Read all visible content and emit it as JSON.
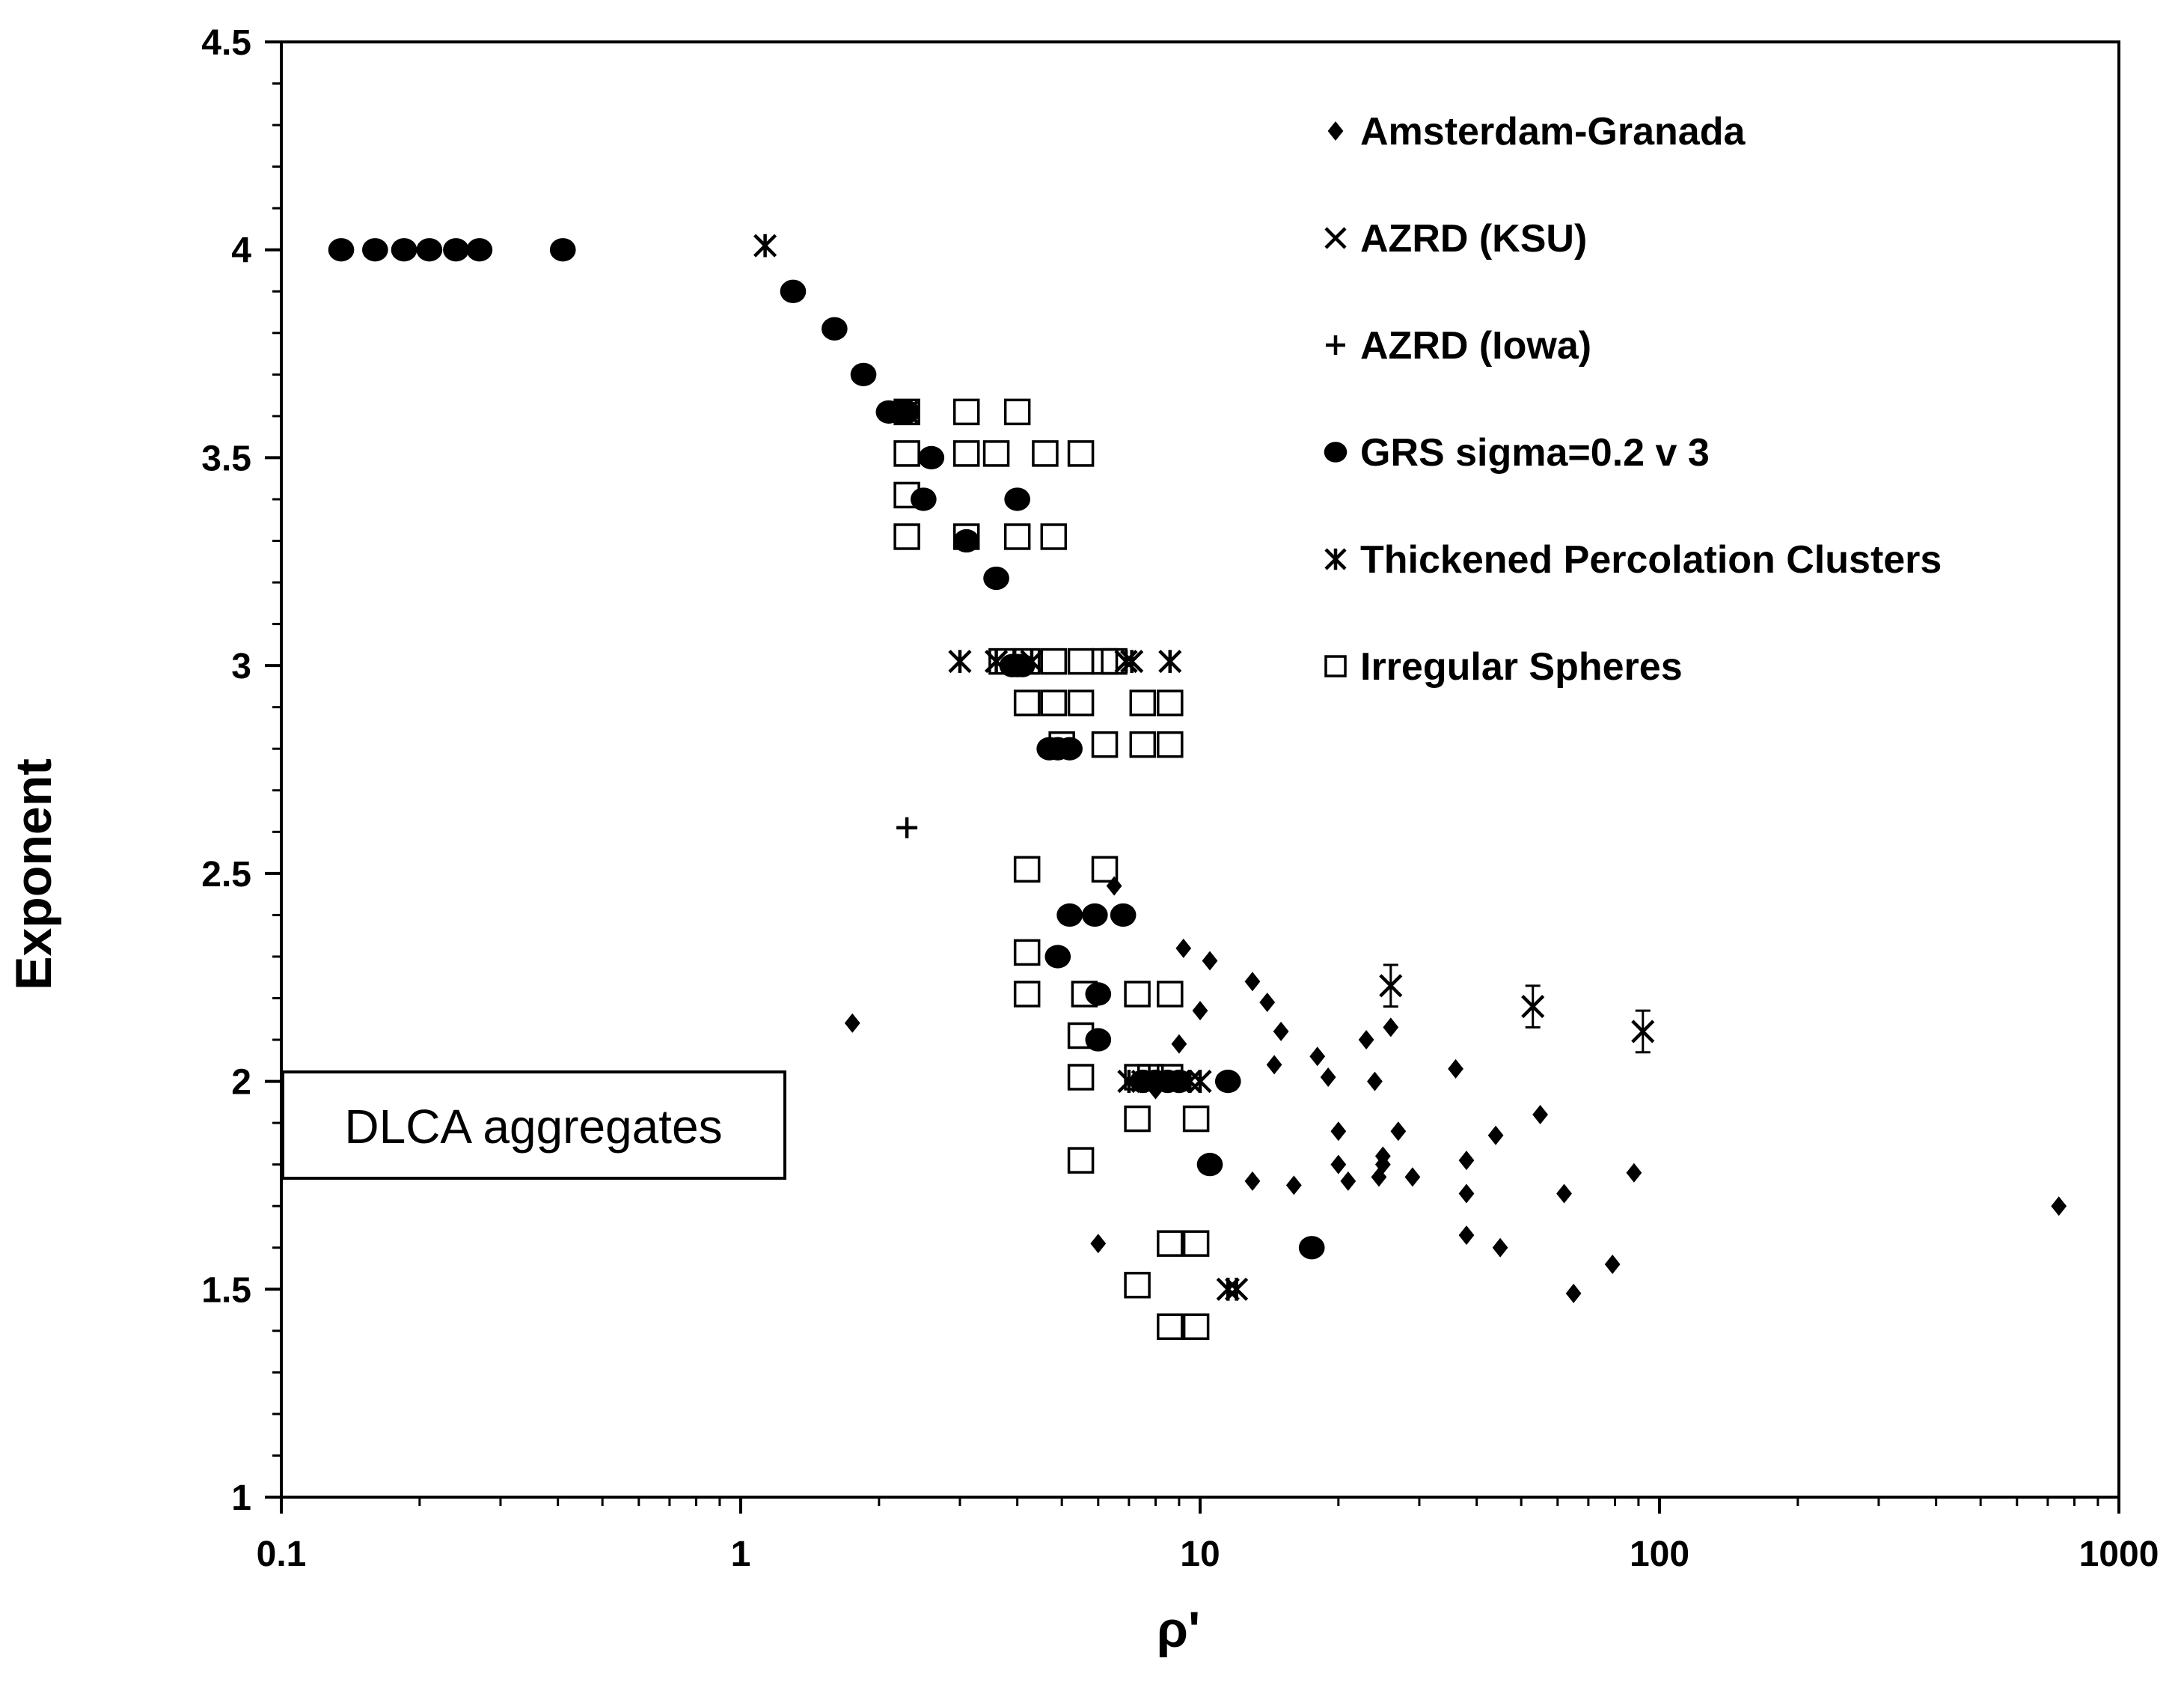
{
  "chart_data": {
    "type": "scatter",
    "title": "",
    "xlabel": "ρ'",
    "ylabel": "Exponent",
    "xscale": "log",
    "xlim": [
      0.1,
      1000
    ],
    "ylim": [
      1,
      4.5
    ],
    "xticks": [
      0.1,
      1,
      10,
      100,
      1000
    ],
    "xtick_labels": [
      "0.1",
      "1",
      "10",
      "100",
      "1000"
    ],
    "yticks": [
      1,
      1.5,
      2,
      2.5,
      3,
      3.5,
      4,
      4.5
    ],
    "ytick_labels": [
      "1",
      "1.5",
      "2",
      "2.5",
      "3",
      "3.5",
      "4",
      "4.5"
    ],
    "grid": false,
    "legend_position": "top-right",
    "annotation": "DLCA aggregates",
    "series": [
      {
        "name": "Amsterdam-Granada",
        "marker": "diamond",
        "points": [
          [
            1.75,
            2.14
          ],
          [
            6.0,
            1.61
          ],
          [
            6.5,
            2.47
          ],
          [
            8.0,
            1.98
          ],
          [
            9.0,
            2.09
          ],
          [
            9.2,
            2.32
          ],
          [
            10.0,
            2.17
          ],
          [
            10.5,
            2.29
          ],
          [
            13.0,
            2.24
          ],
          [
            13.0,
            1.76
          ],
          [
            14.0,
            2.19
          ],
          [
            15.0,
            2.12
          ],
          [
            14.5,
            2.04
          ],
          [
            16.0,
            1.75
          ],
          [
            18.0,
            2.06
          ],
          [
            19.0,
            2.01
          ],
          [
            20.0,
            1.88
          ],
          [
            20.0,
            1.8
          ],
          [
            21.0,
            1.76
          ],
          [
            23.0,
            2.1
          ],
          [
            24.0,
            2.0
          ],
          [
            24.5,
            1.77
          ],
          [
            25.0,
            1.8
          ],
          [
            25.0,
            1.82
          ],
          [
            26.0,
            2.13
          ],
          [
            27.0,
            1.88
          ],
          [
            29.0,
            1.77
          ],
          [
            36.0,
            2.03
          ],
          [
            38.0,
            1.81
          ],
          [
            38.0,
            1.73
          ],
          [
            38.0,
            1.63
          ],
          [
            44.0,
            1.87
          ],
          [
            45.0,
            1.6
          ],
          [
            55.0,
            1.92
          ],
          [
            62.0,
            1.73
          ],
          [
            65.0,
            1.49
          ],
          [
            79.0,
            1.56
          ],
          [
            88.0,
            1.78
          ],
          [
            740.0,
            1.7
          ]
        ]
      },
      {
        "name": "AZRD (KSU)",
        "marker": "x",
        "points": [
          [
            26.0,
            2.23
          ],
          [
            53.0,
            2.18
          ],
          [
            92.0,
            2.12
          ]
        ],
        "error": [
          0.05,
          0.05,
          0.05
        ]
      },
      {
        "name": "AZRD (Iowa)",
        "marker": "plus",
        "points": [
          [
            2.3,
            2.61
          ]
        ]
      },
      {
        "name": "GRS sigma=0.2 v 3",
        "marker": "circle",
        "points": [
          [
            0.135,
            4.0
          ],
          [
            0.16,
            4.0
          ],
          [
            0.185,
            4.0
          ],
          [
            0.21,
            4.0
          ],
          [
            0.24,
            4.0
          ],
          [
            0.27,
            4.0
          ],
          [
            0.41,
            4.0
          ],
          [
            1.3,
            3.9
          ],
          [
            1.6,
            3.81
          ],
          [
            1.85,
            3.7
          ],
          [
            2.1,
            3.61
          ],
          [
            2.2,
            3.61
          ],
          [
            2.3,
            3.61
          ],
          [
            2.6,
            3.5
          ],
          [
            2.5,
            3.4
          ],
          [
            3.1,
            3.3
          ],
          [
            3.6,
            3.21
          ],
          [
            4.0,
            3.4
          ],
          [
            3.9,
            3.0
          ],
          [
            4.0,
            3.0
          ],
          [
            4.1,
            3.0
          ],
          [
            4.7,
            2.8
          ],
          [
            4.9,
            2.8
          ],
          [
            5.2,
            2.8
          ],
          [
            5.2,
            2.4
          ],
          [
            5.9,
            2.4
          ],
          [
            6.8,
            2.4
          ],
          [
            4.9,
            2.3
          ],
          [
            6.0,
            2.21
          ],
          [
            6.0,
            2.1
          ],
          [
            7.5,
            2.0
          ],
          [
            8.0,
            2.0
          ],
          [
            8.5,
            2.0
          ],
          [
            9.0,
            2.0
          ],
          [
            11.5,
            2.0
          ],
          [
            10.5,
            1.8
          ],
          [
            17.5,
            1.6
          ]
        ]
      },
      {
        "name": "Thickened Percolation Clusters",
        "marker": "star",
        "points": [
          [
            1.13,
            4.01
          ],
          [
            2.3,
            3.61
          ],
          [
            3.0,
            3.01
          ],
          [
            3.6,
            3.01
          ],
          [
            4.3,
            3.01
          ],
          [
            6.9,
            3.01
          ],
          [
            7.1,
            3.01
          ],
          [
            8.6,
            3.01
          ],
          [
            7.0,
            2.0
          ],
          [
            7.5,
            2.0
          ],
          [
            8.0,
            2.0
          ],
          [
            8.5,
            2.0
          ],
          [
            9.0,
            2.0
          ],
          [
            9.5,
            2.0
          ],
          [
            10.0,
            2.0
          ],
          [
            11.5,
            1.5
          ],
          [
            12.0,
            1.5
          ]
        ]
      },
      {
        "name": "Irregular Spheres",
        "marker": "square",
        "points": [
          [
            2.3,
            3.61
          ],
          [
            3.1,
            3.61
          ],
          [
            4.0,
            3.61
          ],
          [
            2.3,
            3.51
          ],
          [
            3.1,
            3.51
          ],
          [
            3.6,
            3.51
          ],
          [
            4.6,
            3.51
          ],
          [
            5.5,
            3.51
          ],
          [
            2.3,
            3.41
          ],
          [
            2.3,
            3.31
          ],
          [
            3.1,
            3.31
          ],
          [
            4.0,
            3.31
          ],
          [
            4.8,
            3.31
          ],
          [
            3.7,
            3.01
          ],
          [
            4.2,
            3.01
          ],
          [
            4.8,
            3.01
          ],
          [
            5.5,
            3.01
          ],
          [
            6.2,
            3.01
          ],
          [
            6.5,
            3.01
          ],
          [
            4.2,
            2.91
          ],
          [
            4.8,
            2.91
          ],
          [
            5.5,
            2.91
          ],
          [
            7.5,
            2.91
          ],
          [
            8.6,
            2.91
          ],
          [
            5.0,
            2.81
          ],
          [
            6.2,
            2.81
          ],
          [
            7.5,
            2.81
          ],
          [
            8.6,
            2.81
          ],
          [
            4.2,
            2.51
          ],
          [
            6.2,
            2.51
          ],
          [
            4.2,
            2.31
          ],
          [
            4.2,
            2.21
          ],
          [
            5.6,
            2.21
          ],
          [
            7.3,
            2.21
          ],
          [
            8.6,
            2.21
          ],
          [
            5.5,
            2.11
          ],
          [
            5.5,
            2.01
          ],
          [
            7.3,
            2.01
          ],
          [
            7.8,
            2.01
          ],
          [
            8.6,
            2.01
          ],
          [
            7.3,
            1.91
          ],
          [
            9.8,
            1.91
          ],
          [
            5.5,
            1.81
          ],
          [
            8.6,
            1.61
          ],
          [
            9.8,
            1.61
          ],
          [
            7.3,
            1.51
          ],
          [
            8.6,
            1.41
          ],
          [
            9.8,
            1.41
          ]
        ]
      }
    ]
  }
}
